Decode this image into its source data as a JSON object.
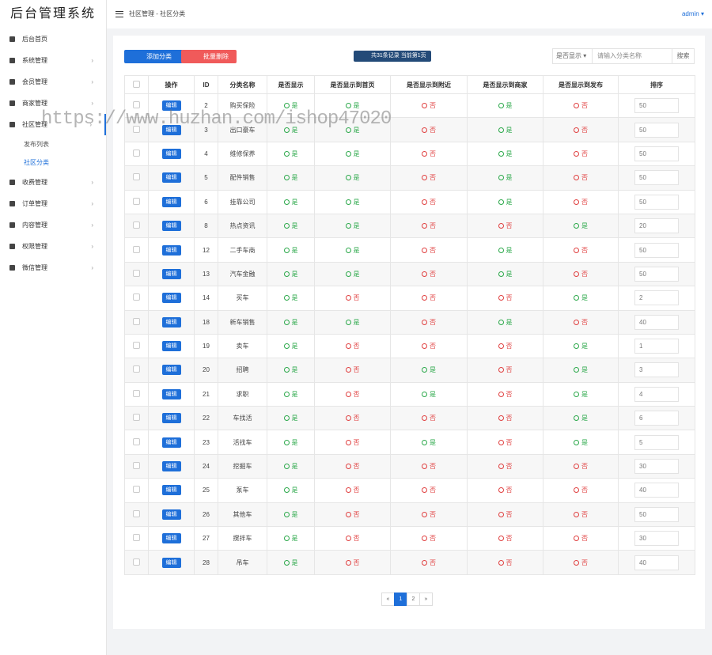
{
  "sidebar": {
    "logo": "后台管理系统",
    "menu": [
      "后台首页",
      "系统管理",
      "会员管理",
      "商家管理",
      "社区管理"
    ],
    "submenu": [
      "发布列表",
      "社区分类"
    ],
    "menu2": [
      "收费管理",
      "订单管理",
      "内容管理",
      "权限管理",
      "微信管理"
    ]
  },
  "topbar": {
    "breadcrumb": "社区管理 - 社区分类",
    "user": "admin"
  },
  "watermark": "https://www.huzhan.com/ishop47020",
  "toolbar": {
    "add": "添加分类",
    "delete": "批量删除",
    "info": "共31条记录 当前第1页",
    "select": "是否显示",
    "placeholder": "请输入分类名称",
    "search": "搜索"
  },
  "table": {
    "headers": [
      "操作",
      "ID",
      "分类名称",
      "是否显示",
      "是否显示到首页",
      "是否显示到附近",
      "是否显示到商家",
      "是否显示到发布",
      "排序"
    ],
    "edit": "编辑",
    "rows": [
      [
        2,
        "购买保险",
        "是",
        "是",
        "否",
        "是",
        "否",
        50
      ],
      [
        3,
        "出口豪车",
        "是",
        "是",
        "否",
        "是",
        "否",
        50
      ],
      [
        4,
        "维修保养",
        "是",
        "是",
        "否",
        "是",
        "否",
        50
      ],
      [
        5,
        "配件销售",
        "是",
        "是",
        "否",
        "是",
        "否",
        50
      ],
      [
        6,
        "挂靠公司",
        "是",
        "是",
        "否",
        "是",
        "否",
        50
      ],
      [
        8,
        "热点资讯",
        "是",
        "是",
        "否",
        "否",
        "是",
        20
      ],
      [
        12,
        "二手车商",
        "是",
        "是",
        "否",
        "是",
        "否",
        50
      ],
      [
        13,
        "汽车金融",
        "是",
        "是",
        "否",
        "是",
        "否",
        50
      ],
      [
        14,
        "买车",
        "是",
        "否",
        "否",
        "否",
        "是",
        2
      ],
      [
        18,
        "新车销售",
        "是",
        "是",
        "否",
        "是",
        "否",
        40
      ],
      [
        19,
        "卖车",
        "是",
        "否",
        "否",
        "否",
        "是",
        1
      ],
      [
        20,
        "招聘",
        "是",
        "否",
        "是",
        "否",
        "是",
        3
      ],
      [
        21,
        "求职",
        "是",
        "否",
        "是",
        "否",
        "是",
        4
      ],
      [
        22,
        "车找活",
        "是",
        "否",
        "否",
        "否",
        "是",
        6
      ],
      [
        23,
        "活找车",
        "是",
        "否",
        "是",
        "否",
        "是",
        5
      ],
      [
        24,
        "挖掘车",
        "是",
        "否",
        "否",
        "否",
        "否",
        30
      ],
      [
        25,
        "泵车",
        "是",
        "否",
        "否",
        "否",
        "否",
        40
      ],
      [
        26,
        "其他车",
        "是",
        "否",
        "否",
        "否",
        "否",
        50
      ],
      [
        27,
        "搅拌车",
        "是",
        "否",
        "否",
        "否",
        "否",
        30
      ],
      [
        28,
        "吊车",
        "是",
        "否",
        "否",
        "否",
        "否",
        40
      ]
    ]
  },
  "pagination": [
    "«",
    "1",
    "2",
    "»"
  ]
}
